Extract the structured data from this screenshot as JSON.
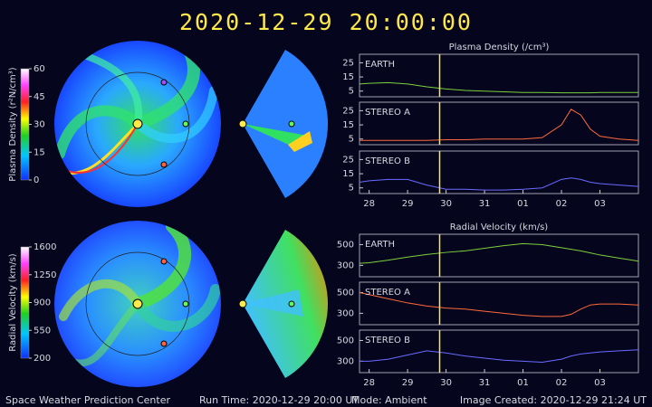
{
  "title": "2020-12-29  20:00:00",
  "footer": {
    "left": "Space Weather Prediction Center",
    "run_time": "Run Time: 2020-12-29 20:00 UT",
    "mode": "Mode: Ambient",
    "created": "Image Created: 2020-12-29 21:24 UT"
  },
  "colorbars": [
    {
      "label": "Plasma Density (r²N/cm³)",
      "lim": [
        0,
        60
      ],
      "ticks": [
        0,
        15,
        30,
        45,
        60
      ]
    },
    {
      "label": "Radial Velocity (km/s)",
      "lim": [
        200,
        1600
      ],
      "ticks": [
        200,
        550,
        900,
        1250,
        1600
      ]
    }
  ],
  "chart_data": [
    {
      "type": "line",
      "title": "Plasma Density (/cm³)",
      "x": [
        -0.25,
        0,
        0.5,
        1,
        1.5,
        2,
        2.5,
        3,
        3.5,
        4,
        4.5,
        5,
        5.25,
        5.5,
        5.75,
        6,
        6.5,
        7
      ],
      "xlim": [
        -0.25,
        7
      ],
      "ylim": [
        1,
        31
      ],
      "yticks": [
        5,
        15,
        25
      ],
      "marker_x": 1.833,
      "series": [
        {
          "name": "EARTH",
          "color": "#7ccf3c",
          "values": [
            10,
            10.5,
            11,
            10,
            8,
            6.5,
            5.5,
            5,
            4.5,
            4,
            4,
            3.8,
            3.8,
            3.8,
            3.8,
            4,
            4,
            4
          ]
        }
      ]
    },
    {
      "type": "line",
      "x": [
        -0.25,
        0,
        0.5,
        1,
        1.5,
        2,
        2.5,
        3,
        3.5,
        4,
        4.5,
        5,
        5.25,
        5.5,
        5.75,
        6,
        6.5,
        7
      ],
      "xlim": [
        -0.25,
        7
      ],
      "ylim": [
        1,
        31
      ],
      "yticks": [
        5,
        15,
        25
      ],
      "marker_x": 1.833,
      "series": [
        {
          "name": "STEREO A",
          "color": "#ff6a3c",
          "values": [
            4,
            4,
            4,
            4,
            4,
            4.5,
            4.5,
            5,
            5,
            5,
            6,
            15,
            26,
            22,
            12,
            7,
            5,
            4
          ]
        }
      ]
    },
    {
      "type": "line",
      "x": [
        -0.25,
        0,
        0.5,
        1,
        1.5,
        2,
        2.5,
        3,
        3.5,
        4,
        4.5,
        5,
        5.25,
        5.5,
        5.75,
        6,
        6.5,
        7
      ],
      "xlim": [
        -0.25,
        7
      ],
      "ylim": [
        1,
        31
      ],
      "yticks": [
        5,
        15,
        25
      ],
      "marker_x": 1.833,
      "xticks": [
        {
          "value": 0,
          "label": "28"
        },
        {
          "value": 1,
          "label": "29"
        },
        {
          "value": 2,
          "label": "30"
        },
        {
          "value": 3,
          "label": "31"
        },
        {
          "value": 4,
          "label": "01"
        },
        {
          "value": 5,
          "label": "02"
        },
        {
          "value": 6,
          "label": "03"
        }
      ],
      "series": [
        {
          "name": "STEREO B",
          "color": "#6a6aff",
          "values": [
            9,
            10,
            11,
            11,
            7,
            4,
            4,
            3.5,
            3.5,
            4,
            5,
            11,
            12,
            11,
            9,
            8,
            7,
            6
          ]
        }
      ]
    },
    {
      "type": "line",
      "title": "Radial Velocity (km/s)",
      "x": [
        -0.25,
        0,
        0.5,
        1,
        1.5,
        2,
        2.5,
        3,
        3.5,
        4,
        4.5,
        5,
        5.25,
        5.5,
        5.75,
        6,
        6.5,
        7
      ],
      "xlim": [
        -0.25,
        7
      ],
      "ylim": [
        190,
        600
      ],
      "yticks": [
        300,
        500
      ],
      "marker_x": 1.833,
      "series": [
        {
          "name": "EARTH",
          "color": "#7ccf3c",
          "values": [
            320,
            325,
            350,
            380,
            405,
            425,
            440,
            465,
            490,
            510,
            500,
            470,
            455,
            440,
            420,
            400,
            370,
            340
          ]
        }
      ]
    },
    {
      "type": "line",
      "x": [
        -0.25,
        0,
        0.5,
        1,
        1.5,
        2,
        2.5,
        3,
        3.5,
        4,
        4.5,
        5,
        5.25,
        5.5,
        5.75,
        6,
        6.5,
        7
      ],
      "xlim": [
        -0.25,
        7
      ],
      "ylim": [
        190,
        600
      ],
      "yticks": [
        300,
        500
      ],
      "marker_x": 1.833,
      "series": [
        {
          "name": "STEREO A",
          "color": "#ff6a3c",
          "values": [
            500,
            480,
            440,
            400,
            370,
            350,
            340,
            320,
            300,
            280,
            270,
            270,
            290,
            340,
            380,
            390,
            390,
            380
          ]
        }
      ]
    },
    {
      "type": "line",
      "x": [
        -0.25,
        0,
        0.5,
        1,
        1.5,
        2,
        2.5,
        3,
        3.5,
        4,
        4.5,
        5,
        5.25,
        5.5,
        5.75,
        6,
        6.5,
        7
      ],
      "xlim": [
        -0.25,
        7
      ],
      "ylim": [
        190,
        600
      ],
      "yticks": [
        300,
        500
      ],
      "marker_x": 1.833,
      "xticks": [
        {
          "value": 0,
          "label": "28"
        },
        {
          "value": 1,
          "label": "29"
        },
        {
          "value": 2,
          "label": "30"
        },
        {
          "value": 3,
          "label": "31"
        },
        {
          "value": 4,
          "label": "01"
        },
        {
          "value": 5,
          "label": "02"
        },
        {
          "value": 6,
          "label": "03"
        }
      ],
      "series": [
        {
          "name": "STEREO B",
          "color": "#6a6aff",
          "values": [
            300,
            300,
            320,
            360,
            400,
            380,
            350,
            330,
            310,
            300,
            290,
            320,
            350,
            370,
            380,
            390,
            400,
            410
          ]
        }
      ]
    }
  ]
}
